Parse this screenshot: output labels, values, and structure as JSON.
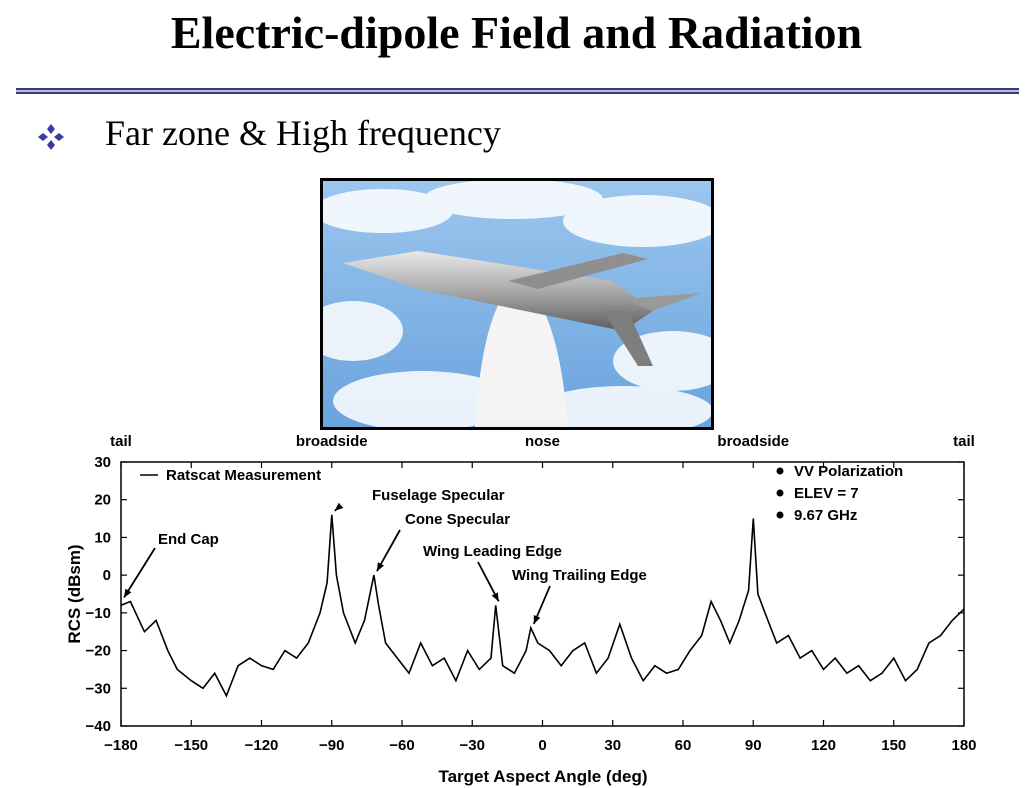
{
  "slide": {
    "title": "Electric-dipole Field and Radiation",
    "bullet": "Far zone & High frequency"
  },
  "colors": {
    "rule": "#b7b9d8",
    "bullet": "#3a3aa6",
    "sky": "#7fb2e5",
    "curve": "#000000"
  },
  "chart_data": {
    "type": "line",
    "xlabel": "Target Aspect Angle (deg)",
    "ylabel": "RCS (dBsm)",
    "xlim": [
      -180,
      180
    ],
    "ylim": [
      -40,
      30
    ],
    "xticks": [
      "-180",
      "-150",
      "-120",
      "-90",
      "-60",
      "-30",
      "0",
      "30",
      "60",
      "90",
      "120",
      "150",
      "180"
    ],
    "yticks": [
      "-40",
      "-30",
      "-20",
      "-10",
      "0",
      "10",
      "20",
      "30"
    ],
    "top_labels": [
      {
        "text": "tail",
        "x": -180
      },
      {
        "text": "broadside",
        "x": -90
      },
      {
        "text": "nose",
        "x": 0
      },
      {
        "text": "broadside",
        "x": 90
      },
      {
        "text": "tail",
        "x": 180
      }
    ],
    "legend": "Ratscat Measurement",
    "conditions": [
      "VV Polarization",
      "ELEV = 7",
      "9.67 GHz"
    ],
    "annotations": [
      {
        "text": "Fuselage Specular",
        "x": -90,
        "y": 16
      },
      {
        "text": "Cone Specular",
        "x": -72,
        "y": 0
      },
      {
        "text": "End Cap",
        "x": -180,
        "y": -7
      },
      {
        "text": "Wing Leading Edge",
        "x": -20,
        "y": -8
      },
      {
        "text": "Wing Trailing Edge",
        "x": -5,
        "y": -14
      }
    ],
    "series": [
      {
        "name": "Ratscat Measurement",
        "x": [
          -180,
          -176,
          -170,
          -165,
          -160,
          -156,
          -150,
          -145,
          -140,
          -135,
          -130,
          -125,
          -120,
          -115,
          -110,
          -105,
          -100,
          -95,
          -92,
          -90,
          -88,
          -85,
          -80,
          -76,
          -72,
          -70,
          -67,
          -62,
          -57,
          -52,
          -47,
          -42,
          -37,
          -32,
          -27,
          -22,
          -20,
          -17,
          -12,
          -7,
          -5,
          -2,
          3,
          8,
          13,
          18,
          23,
          28,
          33,
          38,
          43,
          48,
          53,
          58,
          63,
          68,
          72,
          76,
          80,
          84,
          88,
          90,
          92,
          95,
          100,
          105,
          110,
          115,
          120,
          125,
          130,
          135,
          140,
          145,
          150,
          155,
          160,
          165,
          170,
          175,
          180
        ],
        "y": [
          -8,
          -7,
          -15,
          -12,
          -20,
          -25,
          -28,
          -30,
          -26,
          -32,
          -24,
          -22,
          -24,
          -25,
          -20,
          -22,
          -18,
          -10,
          -2,
          16,
          0,
          -10,
          -18,
          -12,
          0,
          -8,
          -18,
          -22,
          -26,
          -18,
          -24,
          -22,
          -28,
          -20,
          -25,
          -22,
          -8,
          -24,
          -26,
          -20,
          -14,
          -18,
          -20,
          -24,
          -20,
          -18,
          -26,
          -22,
          -13,
          -22,
          -28,
          -24,
          -26,
          -25,
          -20,
          -16,
          -7,
          -12,
          -18,
          -12,
          -4,
          15,
          -5,
          -10,
          -18,
          -16,
          -22,
          -20,
          -25,
          -22,
          -26,
          -24,
          -28,
          -26,
          -22,
          -28,
          -25,
          -18,
          -16,
          -12,
          -9
        ]
      }
    ]
  }
}
